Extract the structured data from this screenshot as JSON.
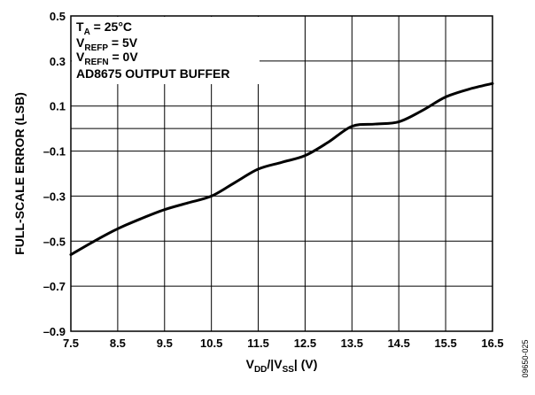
{
  "chart_data": {
    "type": "line",
    "xlabel_parts": [
      {
        "t": "V",
        "sub": false
      },
      {
        "t": "DD",
        "sub": true
      },
      {
        "t": "/|V",
        "sub": false
      },
      {
        "t": "SS",
        "sub": true
      },
      {
        "t": "| (V)",
        "sub": false
      }
    ],
    "ylabel": "FULL-SCALE ERROR (LSB)",
    "xlim": [
      7.5,
      16.5
    ],
    "ylim": [
      -0.9,
      0.5
    ],
    "xticks": [
      "7.5",
      "8.5",
      "9.5",
      "10.5",
      "11.5",
      "12.5",
      "13.5",
      "14.5",
      "15.5",
      "16.5"
    ],
    "yticks": [
      "0.5",
      "0.3",
      "0.1",
      "–0.1",
      "–0.3",
      "–0.5",
      "–0.7",
      "–0.9"
    ],
    "grid": true,
    "annotations": [
      [
        {
          "t": "T",
          "sub": false
        },
        {
          "t": "A",
          "sub": true
        },
        {
          "t": " = 25°C",
          "sub": false
        }
      ],
      [
        {
          "t": "V",
          "sub": false
        },
        {
          "t": "REFP",
          "sub": true
        },
        {
          "t": " = 5V",
          "sub": false
        }
      ],
      [
        {
          "t": "V",
          "sub": false
        },
        {
          "t": "REFN",
          "sub": true
        },
        {
          "t": " = 0V",
          "sub": false
        }
      ],
      [
        {
          "t": "AD8675 OUTPUT BUFFER",
          "sub": false
        }
      ]
    ],
    "series": [
      {
        "x": [
          7.5,
          8.0,
          8.5,
          9.0,
          9.5,
          10.0,
          10.5,
          11.0,
          11.5,
          12.0,
          12.5,
          13.0,
          13.5,
          14.0,
          14.5,
          15.0,
          15.5,
          16.0,
          16.5
        ],
        "y": [
          -0.56,
          -0.5,
          -0.445,
          -0.4,
          -0.36,
          -0.33,
          -0.3,
          -0.24,
          -0.18,
          -0.15,
          -0.12,
          -0.06,
          0.01,
          0.02,
          0.03,
          0.08,
          0.14,
          0.175,
          0.2
        ],
        "color": "#000000"
      }
    ],
    "figure_code": "09650-025"
  }
}
